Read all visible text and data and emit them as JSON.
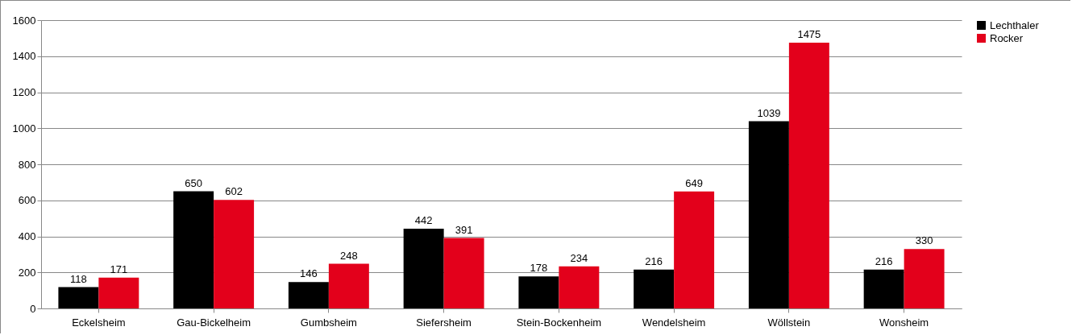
{
  "chart_data": {
    "type": "bar",
    "categories": [
      "Eckelsheim",
      "Gau-Bickelheim",
      "Gumbsheim",
      "Siefersheim",
      "Stein-Bockenheim",
      "Wendelsheim",
      "Wöllstein",
      "Wonsheim"
    ],
    "series": [
      {
        "name": "Lechthaler",
        "color": "#000000",
        "values": [
          118,
          650,
          146,
          442,
          178,
          216,
          1039,
          216
        ]
      },
      {
        "name": "Rocker",
        "color": "#e3001b",
        "values": [
          171,
          602,
          248,
          391,
          234,
          649,
          1475,
          330
        ]
      }
    ],
    "ylim": [
      0,
      1600
    ],
    "yticks": [
      0,
      200,
      400,
      600,
      800,
      1000,
      1200,
      1400,
      1600
    ],
    "grid": true,
    "legend": "right",
    "data_labels": true
  }
}
